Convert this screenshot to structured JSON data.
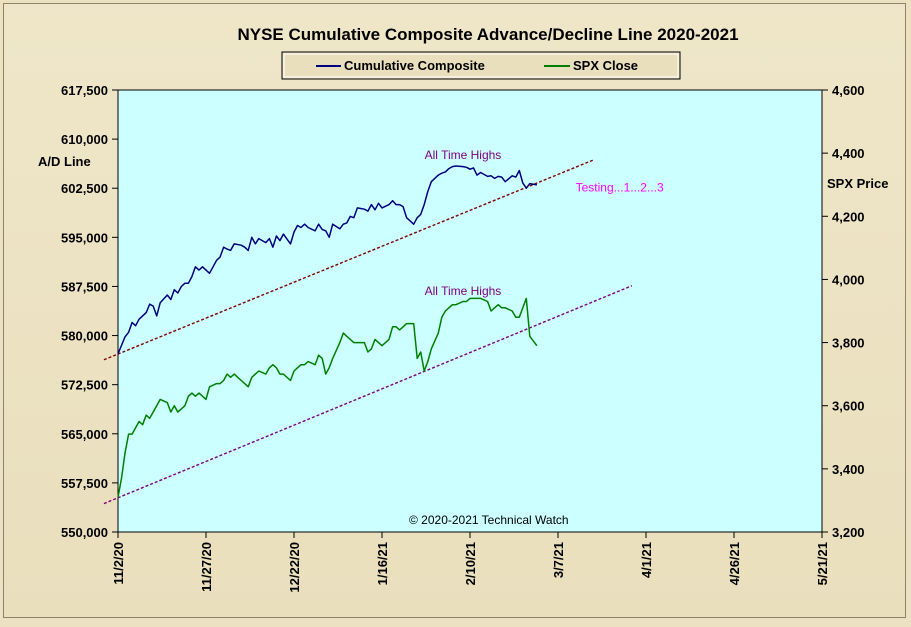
{
  "chart_data": {
    "type": "line",
    "title": "NYSE Cumulative  Composite Advance/Decline  Line 2020-2021",
    "ylabel_left": "A/D Line",
    "ylabel_right": "SPX Price",
    "copyright": "© 2020-2021  Technical Watch",
    "x_tick_labels": [
      "11/2/20",
      "11/27/20",
      "12/22/20",
      "1/16/21",
      "2/10/21",
      "3/7/21",
      "4/1/21",
      "4/26/21",
      "5/21/21"
    ],
    "xlim_days": [
      0,
      200
    ],
    "ylim_left": [
      550000,
      617500
    ],
    "ylim_right": [
      3200,
      4600
    ],
    "left_ticks": [
      "550,000",
      "557,500",
      "565,000",
      "572,500",
      "580,000",
      "587,500",
      "595,000",
      "602,500",
      "610,000",
      "617,500"
    ],
    "right_ticks": [
      "3,200",
      "3,400",
      "3,600",
      "3,800",
      "4,000",
      "4,200",
      "4,400",
      "4,600"
    ],
    "grid": false,
    "legend_position": "top-center",
    "colors": {
      "plot_bg": "#ccffff",
      "ad_line": "#000080",
      "spx_line": "#008000",
      "trendline": "#800000",
      "trendline_spx": "#800080",
      "annotation": "#800080",
      "testing": "#ff00ff"
    },
    "series": [
      {
        "name": "Cumulative Composite",
        "axis": "left",
        "x": [
          0,
          1,
          2,
          3,
          4,
          5,
          6,
          7,
          8,
          9,
          10,
          11,
          12,
          14,
          15,
          16,
          17,
          18,
          19,
          20,
          21,
          22,
          23,
          24,
          25,
          26,
          28,
          29,
          30,
          31,
          32,
          33,
          35,
          36,
          37,
          38,
          39,
          40,
          42,
          43,
          44,
          45,
          46,
          47,
          49,
          50,
          51,
          52,
          53,
          54,
          56,
          57,
          58,
          59,
          60,
          61,
          63,
          64,
          65,
          66,
          67,
          68,
          70,
          71,
          72,
          73,
          74,
          75,
          77,
          78,
          79,
          80,
          81,
          82,
          84,
          85,
          86,
          87,
          88,
          89,
          91,
          92,
          93,
          94,
          95,
          96,
          98,
          99,
          100,
          101,
          102,
          103,
          105,
          106,
          107,
          108,
          109,
          110,
          112,
          113,
          114,
          115,
          116,
          117,
          119
        ],
        "values": [
          577200,
          578500,
          579800,
          580500,
          582000,
          581500,
          582500,
          583000,
          583500,
          584800,
          584500,
          583000,
          585000,
          586200,
          585500,
          587000,
          586500,
          587500,
          588000,
          588000,
          589000,
          590500,
          590000,
          590500,
          590000,
          589500,
          591500,
          592000,
          593500,
          593200,
          593000,
          594000,
          593800,
          593500,
          593000,
          595000,
          594000,
          594800,
          594200,
          594800,
          593500,
          595200,
          594500,
          595500,
          594000,
          595800,
          596800,
          596500,
          597000,
          596500,
          596000,
          597000,
          596200,
          596000,
          595000,
          597000,
          596300,
          597000,
          597200,
          598200,
          598000,
          599500,
          599300,
          599000,
          600000,
          599200,
          600200,
          599500,
          600000,
          600600,
          600000,
          600000,
          599700,
          598000,
          597000,
          598000,
          598500,
          600000,
          602000,
          603500,
          604500,
          604800,
          605000,
          605500,
          605800,
          605900,
          605800,
          605700,
          605400,
          605600,
          604500,
          604900,
          604300,
          604400,
          604000,
          604300,
          604200,
          603500,
          604400,
          604200,
          605200,
          603300,
          602500,
          603200,
          603000
        ],
        "trendline": {
          "x": [
            -4,
            135
          ],
          "y": [
            576300,
            606800
          ]
        }
      },
      {
        "name": "SPX Close",
        "axis": "right",
        "x": [
          0,
          1,
          2,
          3,
          4,
          5,
          6,
          7,
          8,
          9,
          10,
          11,
          12,
          14,
          15,
          16,
          17,
          18,
          19,
          20,
          21,
          22,
          23,
          24,
          25,
          26,
          28,
          29,
          30,
          31,
          32,
          33,
          35,
          36,
          37,
          38,
          39,
          40,
          42,
          43,
          44,
          45,
          46,
          47,
          49,
          50,
          51,
          52,
          53,
          54,
          56,
          57,
          58,
          59,
          60,
          61,
          63,
          64,
          65,
          66,
          67,
          68,
          70,
          71,
          72,
          73,
          74,
          75,
          77,
          78,
          79,
          80,
          81,
          82,
          84,
          85,
          86,
          87,
          88,
          89,
          91,
          92,
          93,
          94,
          95,
          96,
          98,
          99,
          100,
          101,
          102,
          103,
          105,
          106,
          107,
          108,
          109,
          110,
          112,
          113,
          114,
          115,
          116,
          117,
          119
        ],
        "values": [
          3310,
          3370,
          3450,
          3510,
          3510,
          3530,
          3550,
          3540,
          3570,
          3560,
          3580,
          3600,
          3620,
          3610,
          3580,
          3600,
          3580,
          3590,
          3600,
          3630,
          3640,
          3630,
          3640,
          3630,
          3620,
          3660,
          3670,
          3670,
          3680,
          3700,
          3690,
          3700,
          3680,
          3670,
          3660,
          3690,
          3700,
          3710,
          3700,
          3720,
          3730,
          3720,
          3700,
          3700,
          3680,
          3710,
          3720,
          3730,
          3730,
          3740,
          3730,
          3760,
          3750,
          3700,
          3720,
          3750,
          3800,
          3830,
          3820,
          3810,
          3800,
          3800,
          3800,
          3770,
          3780,
          3810,
          3800,
          3790,
          3810,
          3850,
          3850,
          3840,
          3850,
          3860,
          3860,
          3750,
          3770,
          3710,
          3740,
          3780,
          3830,
          3880,
          3900,
          3910,
          3920,
          3920,
          3930,
          3930,
          3940,
          3940,
          3940,
          3940,
          3930,
          3900,
          3910,
          3920,
          3910,
          3910,
          3900,
          3880,
          3880,
          3910,
          3940,
          3820,
          3790
        ],
        "trendline": {
          "x": [
            -4,
            146
          ],
          "y": [
            3290,
            3980
          ]
        }
      }
    ],
    "annotations": [
      {
        "text": "All Time Highs",
        "series": "Cumulative Composite",
        "x": 98,
        "y": 607000
      },
      {
        "text": "Testing...1...2...3",
        "series": "Cumulative Composite",
        "x": 130,
        "y": 602000
      },
      {
        "text": "All Time Highs",
        "series": "SPX Close",
        "x": 98,
        "y": 3950
      }
    ]
  }
}
